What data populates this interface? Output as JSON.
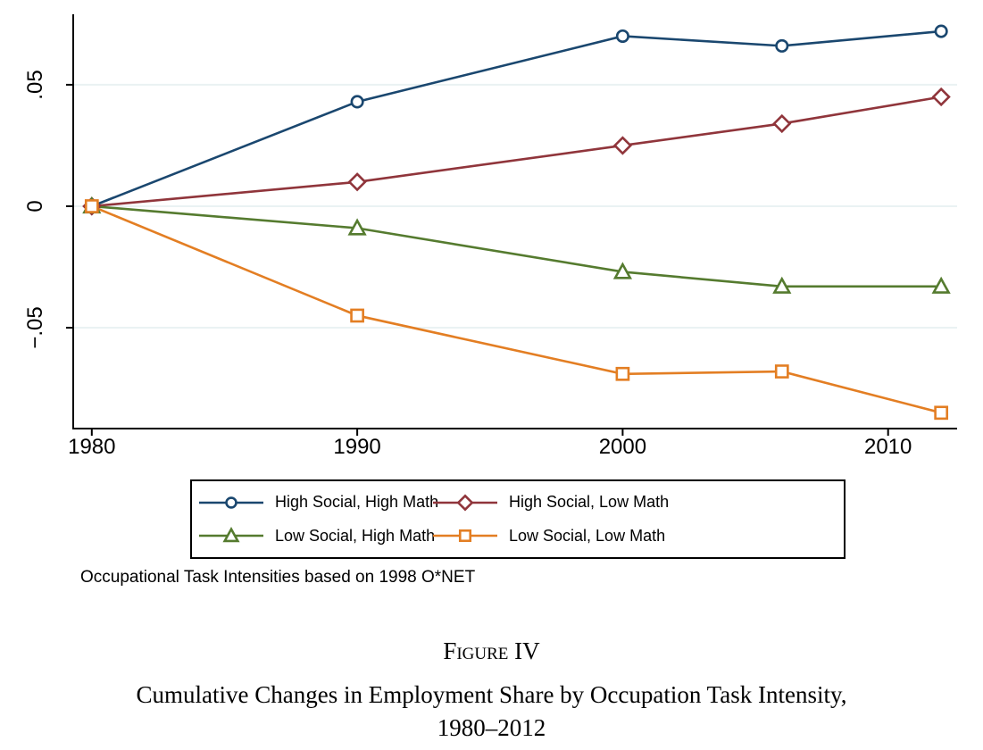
{
  "figure": {
    "caption_label": "Figure IV",
    "title_line1": "Cumulative Changes in Employment Share by Occupation Task Intensity,",
    "title_line2": "1980–2012",
    "note": "Occupational Task Intensities based on 1998 O*NET"
  },
  "chart_data": {
    "type": "line",
    "title": "",
    "xlabel": "",
    "ylabel": "",
    "x": [
      1980,
      1990,
      2000,
      2006,
      2012
    ],
    "series": [
      {
        "name": "High Social, High Math",
        "color": "#1A476F",
        "marker": "circle",
        "values": [
          0,
          0.043,
          0.07,
          0.066,
          0.072
        ]
      },
      {
        "name": "High Social, Low Math",
        "color": "#90353B",
        "marker": "diamond",
        "values": [
          0,
          0.01,
          0.025,
          0.034,
          0.045
        ]
      },
      {
        "name": "Low Social, High Math",
        "color": "#557B2F",
        "marker": "triangle",
        "values": [
          0,
          -0.009,
          -0.027,
          -0.033,
          -0.033
        ]
      },
      {
        "name": "Low Social, Low Math",
        "color": "#E37E23",
        "marker": "square",
        "values": [
          0,
          -0.045,
          -0.069,
          -0.068,
          -0.085
        ]
      }
    ],
    "xticks": [
      1980,
      1990,
      2000,
      2010
    ],
    "xtick_labels": [
      "1980",
      "1990",
      "2000",
      "2010"
    ],
    "yticks": [
      0.05,
      0,
      -0.05
    ],
    "ytick_labels": [
      ".05",
      "0",
      "−.05"
    ],
    "xlim": [
      1979.3,
      2012.6
    ],
    "ylim": [
      -0.0915,
      0.079
    ],
    "grid": "horizontal",
    "gridline_color": "#EAF2F3",
    "axis_color": "#000000",
    "legend_position": "bottom-box",
    "legend_columns": 2
  }
}
